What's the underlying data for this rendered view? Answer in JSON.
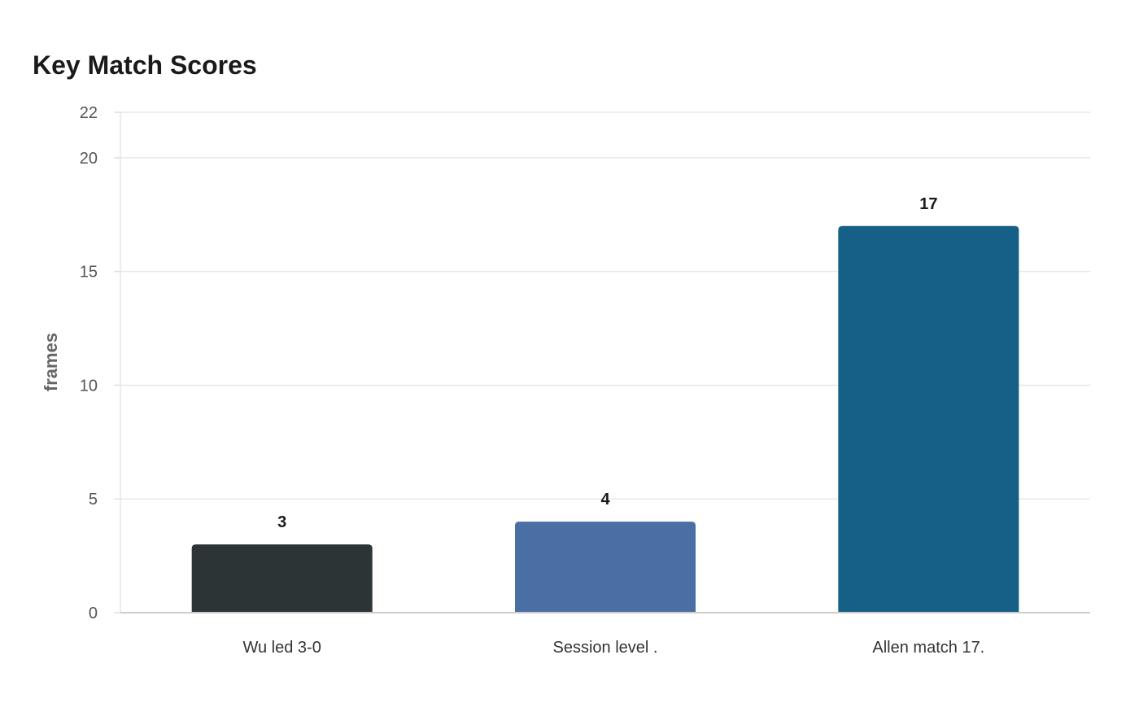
{
  "chart_data": {
    "type": "bar",
    "title": "Key Match Scores",
    "xlabel": "",
    "ylabel": "frames",
    "categories": [
      "Wu led 3-0",
      "Session level .",
      "Allen match 17."
    ],
    "values": [
      3,
      4,
      17
    ],
    "ylim": [
      0,
      22
    ],
    "yticks": [
      0,
      5,
      10,
      15,
      20,
      22
    ],
    "colors": [
      "#2d3436",
      "#4a6fa5",
      "#166088"
    ],
    "grid": true,
    "legend": "none"
  }
}
